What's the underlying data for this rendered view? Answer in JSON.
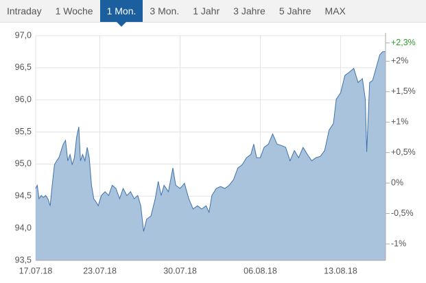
{
  "tabs": [
    {
      "label": "Intraday"
    },
    {
      "label": "1 Woche"
    },
    {
      "label": "1 Mon.",
      "selected": true
    },
    {
      "label": "3 Mon."
    },
    {
      "label": "1 Jahr"
    },
    {
      "label": "3 Jahre"
    },
    {
      "label": "5 Jahre"
    },
    {
      "label": "MAX"
    }
  ],
  "chart_data": {
    "type": "area",
    "x": [
      0,
      0.1,
      0.21,
      0.34,
      0.48,
      0.62,
      0.76,
      0.9,
      1.03,
      1.17,
      1.31,
      1.45,
      1.59,
      1.72,
      1.86,
      2.0,
      2.14,
      2.28,
      2.41,
      2.55,
      2.69,
      2.79,
      2.93,
      3.07,
      3.21,
      3.34,
      3.48,
      3.62,
      3.76,
      3.9,
      4.09,
      4.32,
      4.55,
      4.77,
      5.0,
      5.23,
      5.45,
      5.68,
      5.91,
      6.14,
      6.36,
      6.55,
      6.73,
      6.91,
      7.18,
      7.45,
      7.64,
      7.82,
      8.0,
      8.27,
      8.55,
      8.73,
      9.0,
      9.27,
      9.54,
      9.81,
      10.08,
      10.35,
      10.62,
      10.8,
      10.98,
      11.25,
      11.52,
      11.79,
      12.06,
      12.33,
      12.6,
      12.87,
      13.14,
      13.41,
      13.59,
      13.77,
      14.0,
      14.23,
      14.5,
      14.77,
      15.04,
      15.31,
      15.58,
      15.85,
      16.12,
      16.39,
      16.66,
      16.93,
      17.2,
      17.47,
      17.74,
      18.01,
      18.28,
      18.55,
      18.73,
      19.0,
      19.27,
      19.54,
      19.82,
      20.09,
      20.36,
      20.54,
      20.63,
      20.81,
      20.99,
      21.26,
      21.44,
      21.62,
      21.8
    ],
    "values": [
      94.62,
      94.67,
      94.46,
      94.51,
      94.48,
      94.51,
      94.46,
      94.35,
      94.67,
      94.99,
      95.05,
      95.1,
      95.21,
      95.31,
      95.37,
      95.05,
      95.15,
      94.99,
      95.1,
      95.42,
      95.58,
      95.05,
      95.15,
      95.05,
      95.26,
      95.1,
      94.67,
      94.46,
      94.41,
      94.35,
      94.51,
      94.57,
      94.51,
      94.67,
      94.62,
      94.46,
      94.62,
      94.51,
      94.57,
      94.46,
      94.51,
      94.35,
      93.95,
      94.14,
      94.19,
      94.46,
      94.73,
      94.51,
      94.67,
      94.57,
      94.94,
      94.67,
      94.62,
      94.7,
      94.46,
      94.3,
      94.35,
      94.3,
      94.35,
      94.25,
      94.51,
      94.62,
      94.65,
      94.62,
      94.67,
      94.76,
      94.94,
      94.99,
      95.1,
      95.15,
      95.31,
      95.1,
      95.1,
      95.26,
      95.31,
      95.47,
      95.31,
      95.29,
      95.26,
      95.05,
      95.21,
      95.1,
      95.26,
      95.15,
      95.05,
      95.1,
      95.12,
      95.21,
      95.53,
      95.63,
      96.01,
      96.11,
      96.38,
      96.43,
      96.49,
      96.27,
      96.33,
      96.01,
      95.19,
      96.27,
      96.3,
      96.54,
      96.7,
      96.75,
      96.75
    ],
    "color": "#3f72aa",
    "fill_color": "#a9c3dd",
    "xlim": [
      0,
      21.8
    ],
    "xticks": [
      {
        "value": 0,
        "label": "17.07.18"
      },
      {
        "value": 4,
        "label": "23.07.18"
      },
      {
        "value": 9,
        "label": "30.07.18"
      },
      {
        "value": 14,
        "label": "06.08.18"
      },
      {
        "value": 19,
        "label": "13.08.18"
      }
    ],
    "ylim": [
      93.5,
      97.0
    ],
    "yticks": [
      {
        "value": 93.5,
        "label": "93,5"
      },
      {
        "value": 94.0,
        "label": "94,0"
      },
      {
        "value": 94.5,
        "label": "94,5"
      },
      {
        "value": 95.0,
        "label": "95,0"
      },
      {
        "value": 95.5,
        "label": "95,5"
      },
      {
        "value": 96.0,
        "label": "96,0"
      },
      {
        "value": 96.5,
        "label": "96,5"
      },
      {
        "value": 97.0,
        "label": "97,0"
      }
    ],
    "y2lim": [
      -1.27,
      2.42
    ],
    "y2ticks": [
      {
        "value": -1,
        "label": "-1%"
      },
      {
        "value": -0.5,
        "label": "-0,5%"
      },
      {
        "value": 0,
        "label": "0%"
      },
      {
        "value": 0.5,
        "label": "+0,5%"
      },
      {
        "value": 1,
        "label": "+1%"
      },
      {
        "value": 1.5,
        "label": "+1,5%"
      },
      {
        "value": 2,
        "label": "+2%"
      }
    ],
    "annotation": {
      "label": "+2,3%",
      "value": 2.3,
      "color": "#2e9a2e"
    },
    "grid": true
  }
}
